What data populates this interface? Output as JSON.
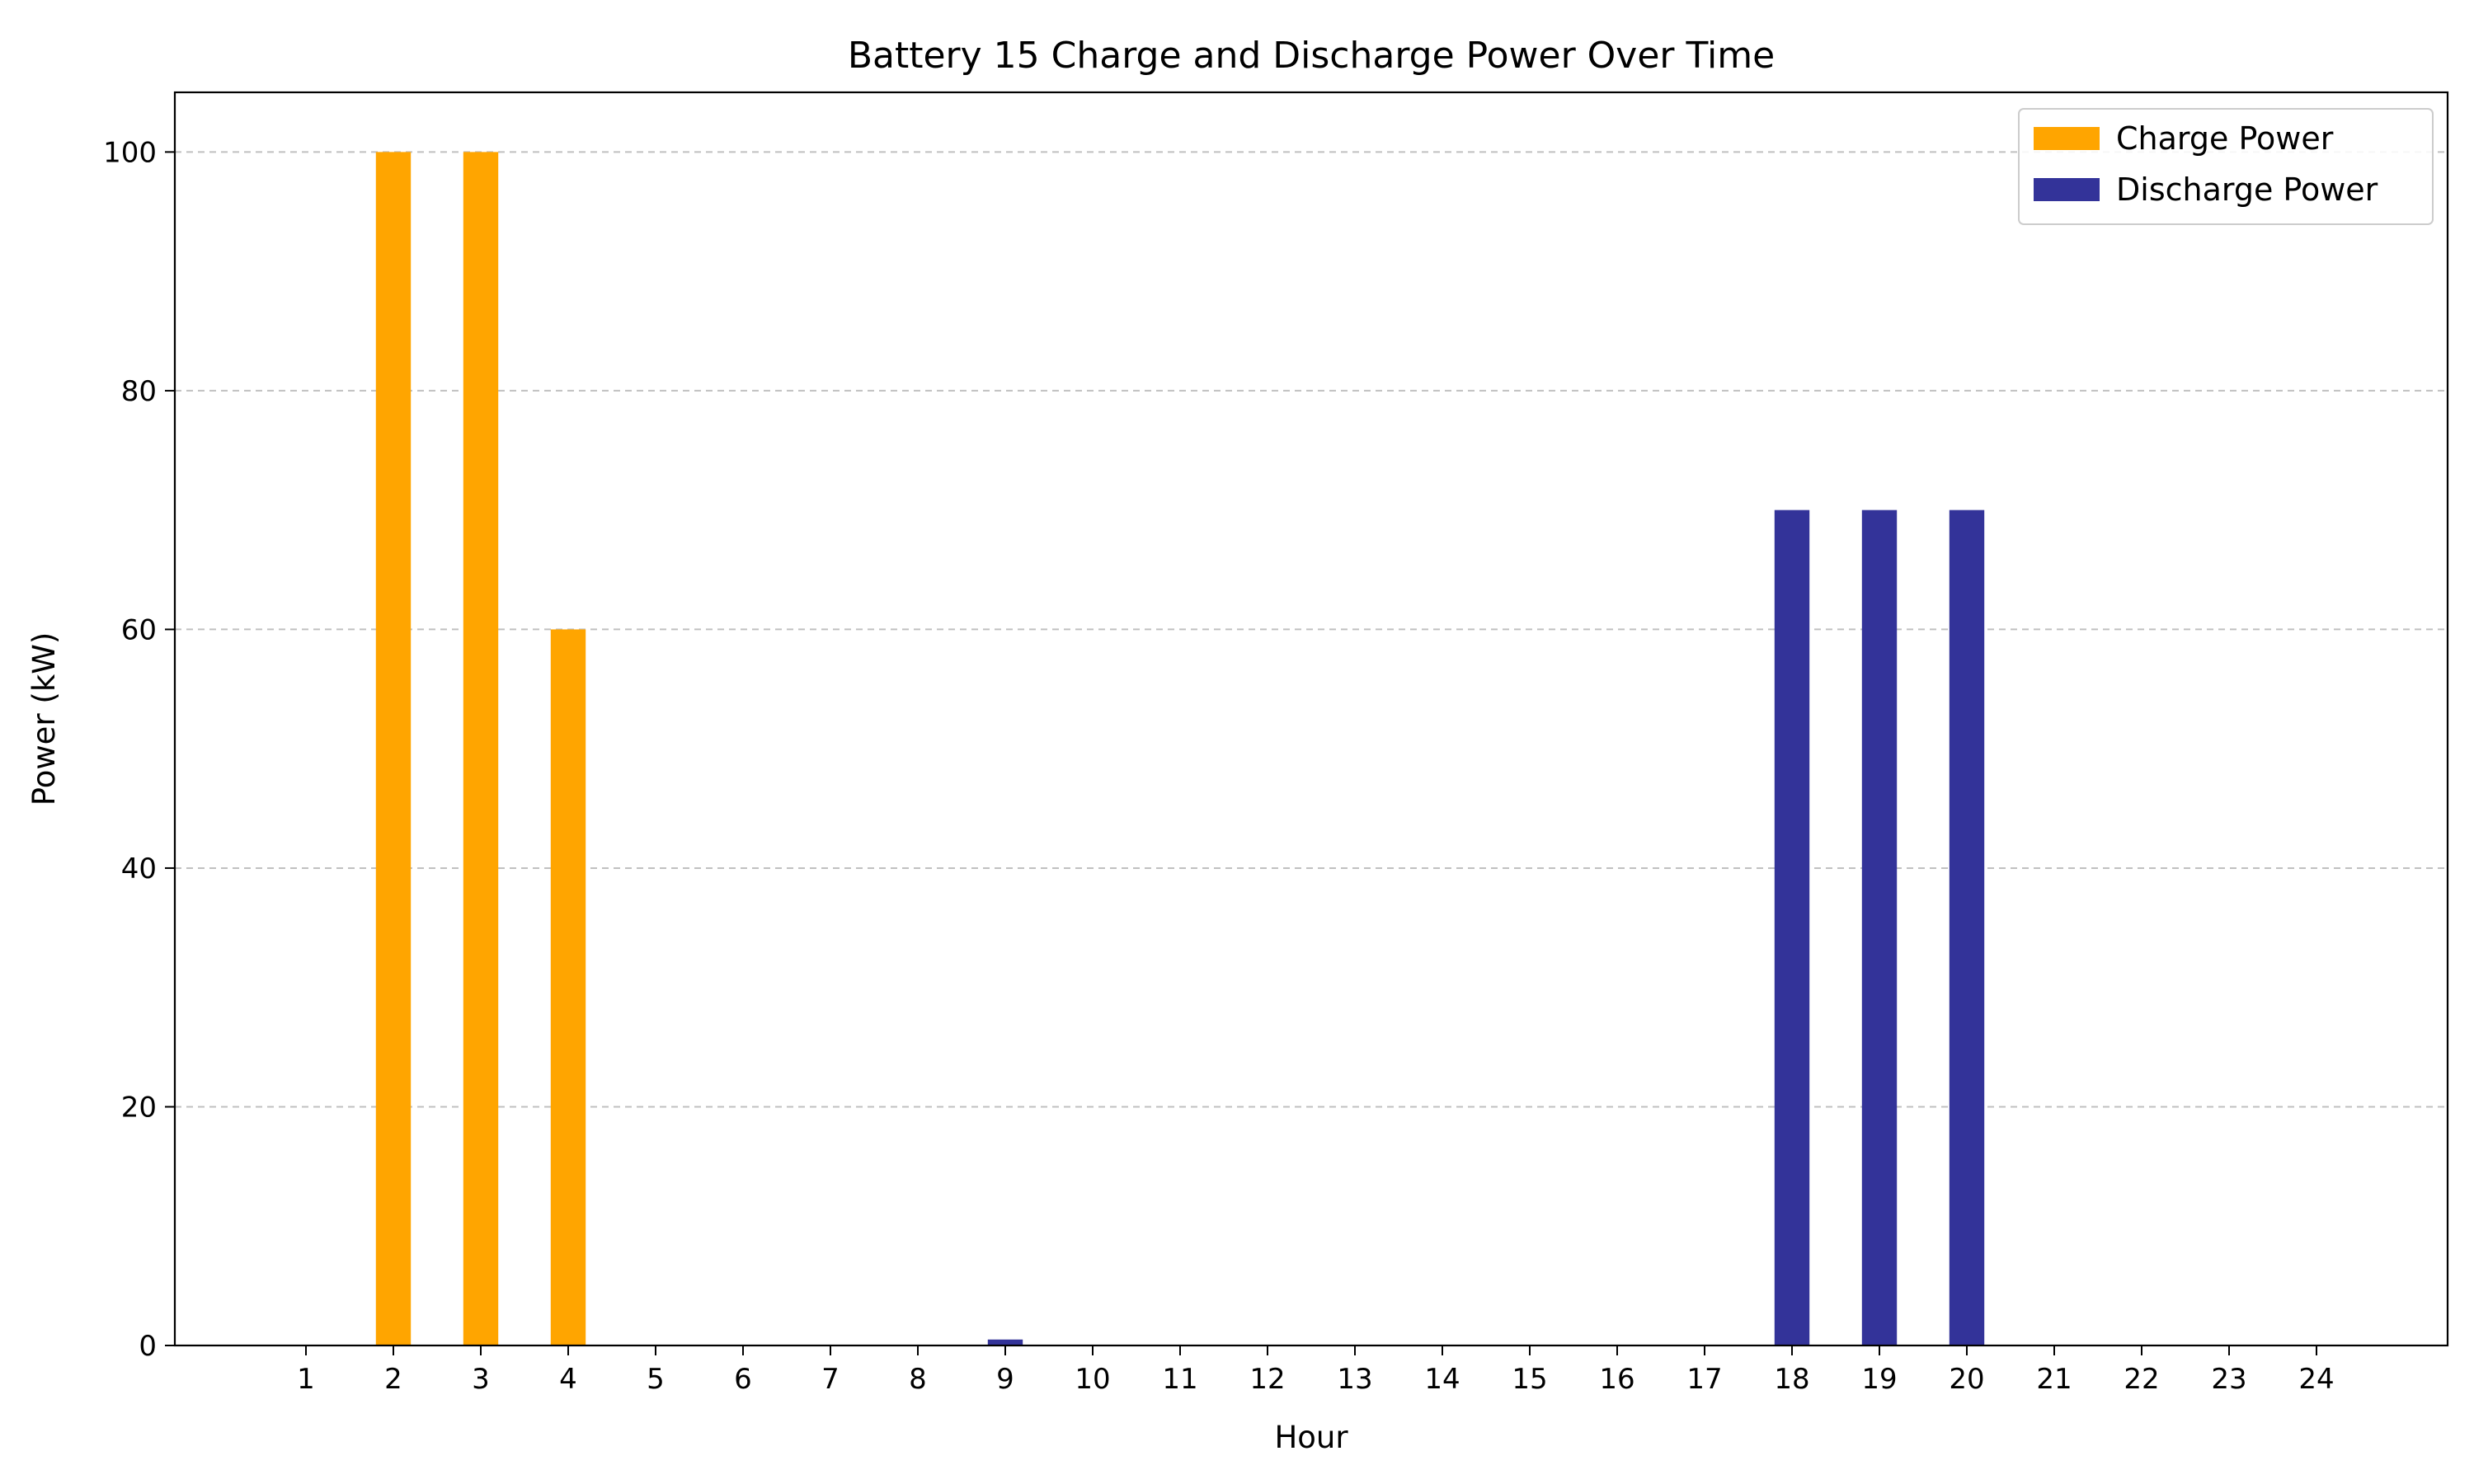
{
  "chart_data": {
    "type": "bar",
    "title": "Battery 15 Charge and Discharge Power Over Time",
    "xlabel": "Hour",
    "ylabel": "Power (kW)",
    "categories": [
      "1",
      "2",
      "3",
      "4",
      "5",
      "6",
      "7",
      "8",
      "9",
      "10",
      "11",
      "12",
      "13",
      "14",
      "15",
      "16",
      "17",
      "18",
      "19",
      "20",
      "21",
      "22",
      "23",
      "24"
    ],
    "series": [
      {
        "name": "Charge Power",
        "color": "#ffa500",
        "values": [
          0,
          100,
          100,
          60,
          0,
          0,
          0,
          0,
          0,
          0,
          0,
          0,
          0,
          0,
          0,
          0,
          0,
          0,
          0,
          0,
          0,
          0,
          0,
          0
        ]
      },
      {
        "name": "Discharge Power",
        "color": "#333399",
        "values": [
          0,
          0,
          0,
          0,
          0,
          0,
          0,
          0,
          0.5,
          0,
          0,
          0,
          0,
          0,
          0,
          0,
          0,
          70,
          70,
          70,
          0,
          0,
          0,
          0
        ]
      }
    ],
    "yticks": [
      "0",
      "20",
      "40",
      "60",
      "80",
      "100"
    ],
    "ylim": [
      0,
      105
    ],
    "xlim": [
      -0.5,
      25.5
    ],
    "grid": "y-dashed",
    "legend_position": "top-right"
  }
}
